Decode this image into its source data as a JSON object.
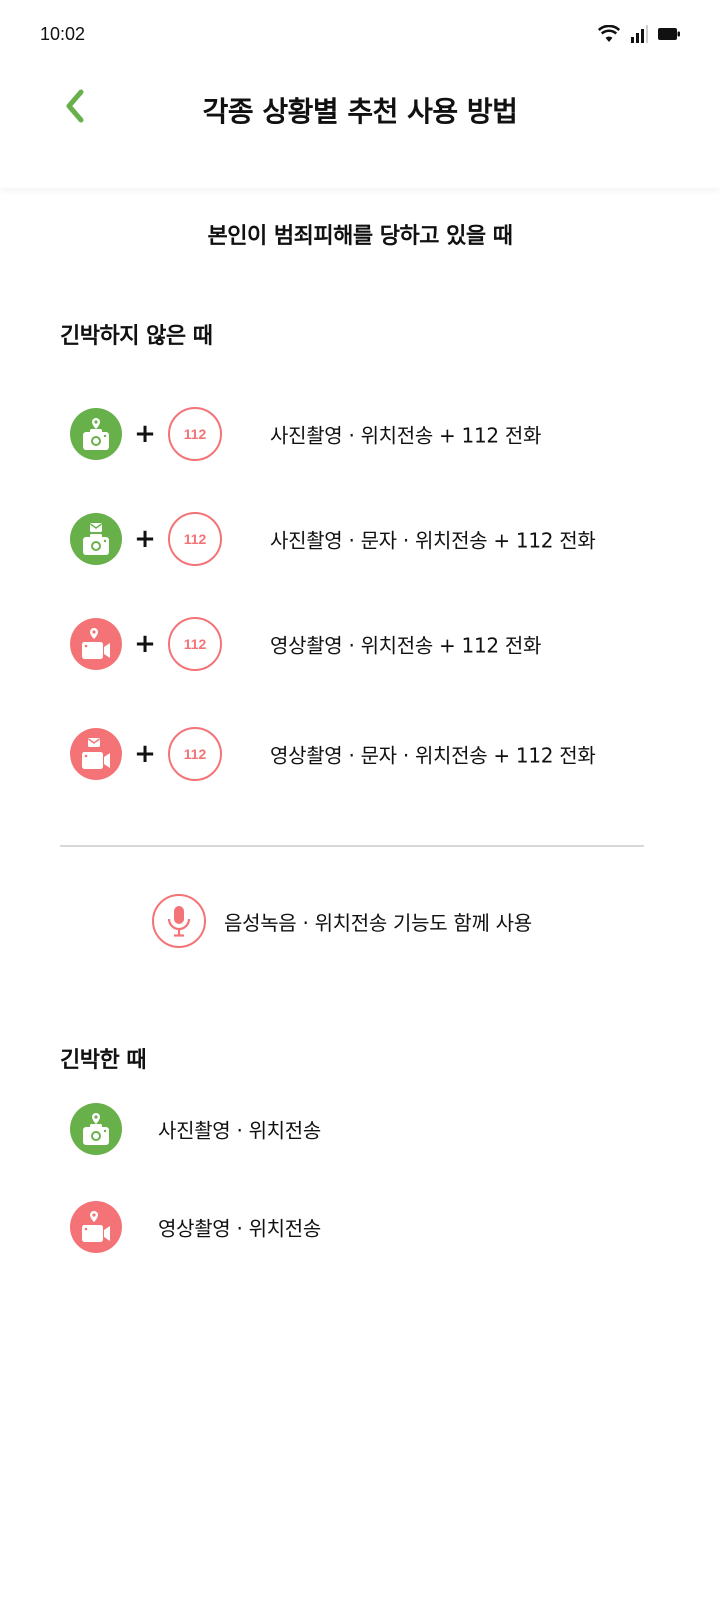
{
  "status_bar": {
    "time": "10:02"
  },
  "header": {
    "title": "각종 상황별 추천 사용 방법",
    "back_icon": "chevron-left-icon"
  },
  "section": {
    "title": "본인이 범죄피해를 당하고 있을 때"
  },
  "not_urgent": {
    "title": "긴박하지 않은 때",
    "plus": "+",
    "call_number": "112",
    "items": [
      {
        "icon": "camera-location-icon",
        "color": "#68b04a",
        "label": "사진촬영 · 위치전송 + 112 전화"
      },
      {
        "icon": "camera-message-icon",
        "color": "#68b04a",
        "label": "사진촬영 · 문자 · 위치전송 + 112 전화"
      },
      {
        "icon": "video-location-icon",
        "color": "#f47376",
        "label": "영상촬영 · 위치전송 + 112 전화"
      },
      {
        "icon": "video-message-icon",
        "color": "#f47376",
        "label": "영상촬영 · 문자 · 위치전송 + 112 전화"
      }
    ]
  },
  "voice": {
    "icon": "microphone-icon",
    "label": "음성녹음 · 위치전송 기능도 함께 사용"
  },
  "urgent": {
    "title": "긴박한 때",
    "items": [
      {
        "icon": "camera-location-icon",
        "color": "#68b04a",
        "label": "사진촬영 · 위치전송"
      },
      {
        "icon": "video-location-icon",
        "color": "#f47376",
        "label": "영상촬영 · 위치전송"
      }
    ]
  },
  "colors": {
    "accent_green": "#68b04a",
    "accent_red": "#f47376",
    "divider": "#d8d8d8"
  }
}
